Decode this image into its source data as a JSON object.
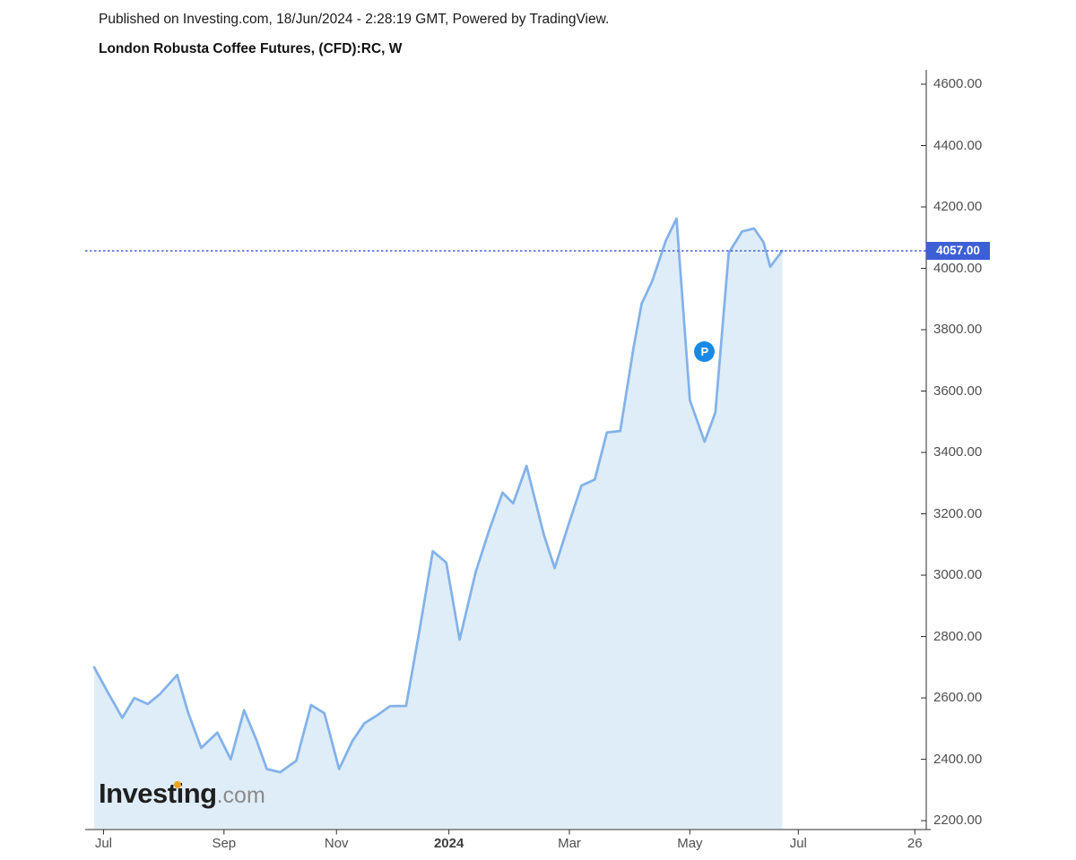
{
  "header": {
    "published_line": "Published on Investing.com, 18/Jun/2024 - 2:28:19 GMT, Powered by TradingView.",
    "instrument_title": "London Robusta Coffee Futures, (CFD):RC, W"
  },
  "logo": {
    "brand": "Investing",
    "tld": ".com",
    "dot_color": "#F2A11C"
  },
  "chart_data": {
    "type": "area",
    "title": "London Robusta Coffee Futures, (CFD):RC, W",
    "symbol": "(CFD):RC",
    "timeframe": "W",
    "x_unit": "weeks since late Jun 2023",
    "ylim": [
      2200,
      4600
    ],
    "y_tick_step": 200,
    "y_ticks": [
      4600,
      4400,
      4200,
      4000,
      3800,
      3600,
      3400,
      3200,
      3000,
      2800,
      2600,
      2400,
      2200
    ],
    "x_ticks": [
      {
        "label": "Jul",
        "t": 0.7,
        "bold": false
      },
      {
        "label": "Sep",
        "t": 9.7,
        "bold": false
      },
      {
        "label": "Nov",
        "t": 18.1,
        "bold": false
      },
      {
        "label": "2024",
        "t": 26.5,
        "bold": true
      },
      {
        "label": "Mar",
        "t": 35.5,
        "bold": false
      },
      {
        "label": "May",
        "t": 44.5,
        "bold": false
      },
      {
        "label": "Jul",
        "t": 52.6,
        "bold": false
      },
      {
        "label": "26",
        "t": 61.3,
        "bold": false
      }
    ],
    "series": [
      {
        "name": "London Robusta Coffee Futures weekly close",
        "points": [
          [
            0.0,
            2700
          ],
          [
            1.0,
            2620
          ],
          [
            2.1,
            2535
          ],
          [
            3.0,
            2600
          ],
          [
            4.0,
            2580
          ],
          [
            4.9,
            2612
          ],
          [
            6.2,
            2675
          ],
          [
            7.0,
            2555
          ],
          [
            8.0,
            2437
          ],
          [
            9.2,
            2487
          ],
          [
            10.2,
            2400
          ],
          [
            11.2,
            2560
          ],
          [
            12.1,
            2465
          ],
          [
            12.9,
            2368
          ],
          [
            13.9,
            2358
          ],
          [
            15.1,
            2395
          ],
          [
            16.2,
            2577
          ],
          [
            17.2,
            2550
          ],
          [
            18.3,
            2368
          ],
          [
            19.3,
            2460
          ],
          [
            20.2,
            2518
          ],
          [
            21.2,
            2545
          ],
          [
            22.1,
            2573
          ],
          [
            23.3,
            2574
          ],
          [
            24.3,
            2820
          ],
          [
            25.3,
            3078
          ],
          [
            26.3,
            3041
          ],
          [
            27.3,
            2790
          ],
          [
            28.5,
            3010
          ],
          [
            29.5,
            3145
          ],
          [
            30.5,
            3269
          ],
          [
            31.3,
            3234
          ],
          [
            32.3,
            3356
          ],
          [
            33.6,
            3131
          ],
          [
            34.4,
            3023
          ],
          [
            35.4,
            3160
          ],
          [
            36.4,
            3292
          ],
          [
            37.4,
            3312
          ],
          [
            38.3,
            3465
          ],
          [
            39.3,
            3470
          ],
          [
            40.3,
            3744
          ],
          [
            40.9,
            3885
          ],
          [
            41.7,
            3960
          ],
          [
            42.7,
            4090
          ],
          [
            43.5,
            4162
          ],
          [
            44.5,
            3570
          ],
          [
            45.6,
            3435
          ],
          [
            46.4,
            3530
          ],
          [
            47.4,
            4050
          ],
          [
            48.4,
            4120
          ],
          [
            49.3,
            4130
          ],
          [
            50.0,
            4085
          ],
          [
            50.5,
            4005
          ],
          [
            51.4,
            4057
          ]
        ]
      }
    ],
    "last_price": 4057.0,
    "last_price_label": "4057.00",
    "marker": {
      "label": "P",
      "t": 45.6,
      "value": 3730
    },
    "grid": false,
    "legend": false,
    "colors": {
      "line": "#83B2E9",
      "fill": "#DFEDF8",
      "accent": "#3D5FD6",
      "dotted_line": "#4A5FD6",
      "marker": "#1989E6",
      "axis": "#2b2b2b",
      "tick_label": "#4f4f4f"
    }
  }
}
